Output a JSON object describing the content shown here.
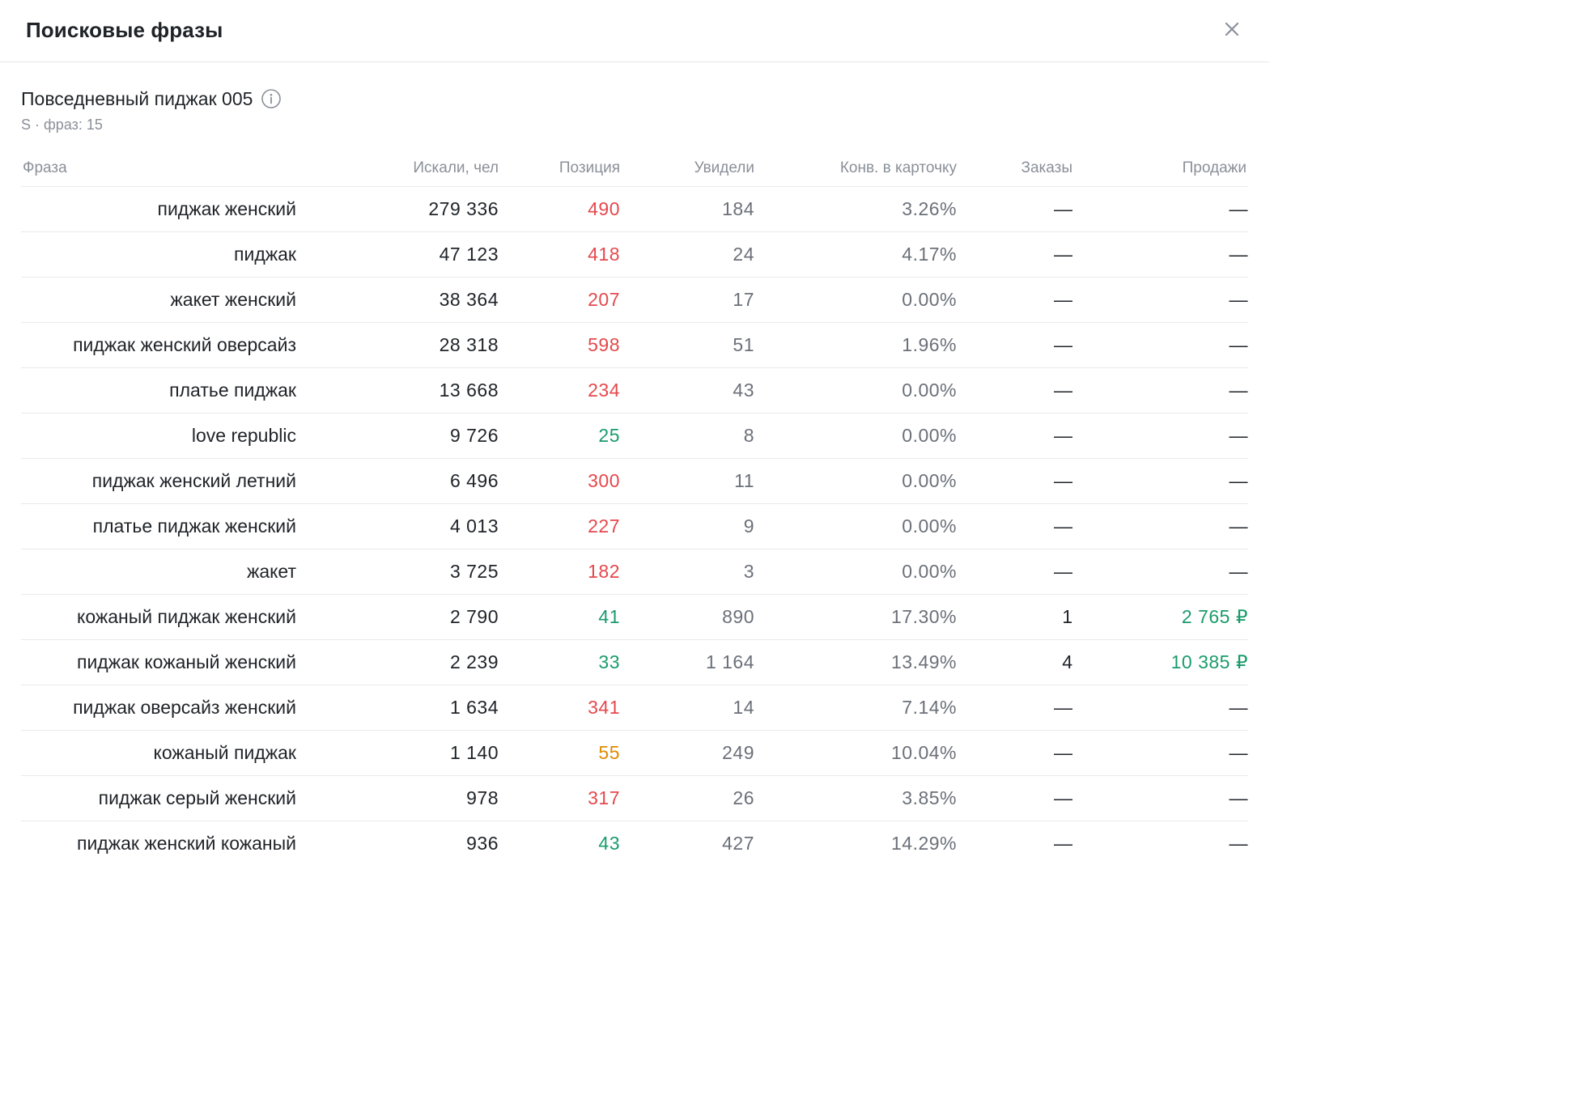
{
  "modal": {
    "title": "Поисковые фразы",
    "close_icon": "close-icon"
  },
  "product": {
    "title": "Повседневный пиджак 005",
    "info_icon": "info-icon",
    "subtitle": "S · фраз: 15"
  },
  "table": {
    "headers": {
      "phrase": "Фраза",
      "searched": "Искали, чел",
      "position": "Позиция",
      "seen": "Увидели",
      "conversion": "Конв. в карточку",
      "orders": "Заказы",
      "sales": "Продажи"
    },
    "colors": {
      "position_bad": "#e5484d",
      "position_good": "#1a9b6c",
      "position_mid": "#e08a00",
      "sales_positive": "#1a9b6c"
    },
    "rows": [
      {
        "phrase": "пиджак женский",
        "searched": "279 336",
        "position": "490",
        "position_status": "bad",
        "seen": "184",
        "conversion": "3.26%",
        "orders": "—",
        "sales": "—"
      },
      {
        "phrase": "пиджак",
        "searched": "47 123",
        "position": "418",
        "position_status": "bad",
        "seen": "24",
        "conversion": "4.17%",
        "orders": "—",
        "sales": "—"
      },
      {
        "phrase": "жакет женский",
        "searched": "38 364",
        "position": "207",
        "position_status": "bad",
        "seen": "17",
        "conversion": "0.00%",
        "orders": "—",
        "sales": "—"
      },
      {
        "phrase": "пиджак женский оверсайз",
        "searched": "28 318",
        "position": "598",
        "position_status": "bad",
        "seen": "51",
        "conversion": "1.96%",
        "orders": "—",
        "sales": "—"
      },
      {
        "phrase": "платье пиджак",
        "searched": "13 668",
        "position": "234",
        "position_status": "bad",
        "seen": "43",
        "conversion": "0.00%",
        "orders": "—",
        "sales": "—"
      },
      {
        "phrase": "love republic",
        "searched": "9 726",
        "position": "25",
        "position_status": "good",
        "seen": "8",
        "conversion": "0.00%",
        "orders": "—",
        "sales": "—"
      },
      {
        "phrase": "пиджак женский летний",
        "searched": "6 496",
        "position": "300",
        "position_status": "bad",
        "seen": "11",
        "conversion": "0.00%",
        "orders": "—",
        "sales": "—"
      },
      {
        "phrase": "платье пиджак женский",
        "searched": "4 013",
        "position": "227",
        "position_status": "bad",
        "seen": "9",
        "conversion": "0.00%",
        "orders": "—",
        "sales": "—"
      },
      {
        "phrase": "жакет",
        "searched": "3 725",
        "position": "182",
        "position_status": "bad",
        "seen": "3",
        "conversion": "0.00%",
        "orders": "—",
        "sales": "—"
      },
      {
        "phrase": "кожаный пиджак женский",
        "searched": "2 790",
        "position": "41",
        "position_status": "good",
        "seen": "890",
        "conversion": "17.30%",
        "orders": "1",
        "sales": "2 765 ₽",
        "sales_positive": true
      },
      {
        "phrase": "пиджак кожаный женский",
        "searched": "2 239",
        "position": "33",
        "position_status": "good",
        "seen": "1 164",
        "conversion": "13.49%",
        "orders": "4",
        "sales": "10 385 ₽",
        "sales_positive": true
      },
      {
        "phrase": "пиджак оверсайз женский",
        "searched": "1 634",
        "position": "341",
        "position_status": "bad",
        "seen": "14",
        "conversion": "7.14%",
        "orders": "—",
        "sales": "—"
      },
      {
        "phrase": "кожаный пиджак",
        "searched": "1 140",
        "position": "55",
        "position_status": "mid",
        "seen": "249",
        "conversion": "10.04%",
        "orders": "—",
        "sales": "—"
      },
      {
        "phrase": "пиджак серый женский",
        "searched": "978",
        "position": "317",
        "position_status": "bad",
        "seen": "26",
        "conversion": "3.85%",
        "orders": "—",
        "sales": "—"
      },
      {
        "phrase": "пиджак женский кожаный",
        "searched": "936",
        "position": "43",
        "position_status": "good",
        "seen": "427",
        "conversion": "14.29%",
        "orders": "—",
        "sales": "—"
      }
    ]
  }
}
